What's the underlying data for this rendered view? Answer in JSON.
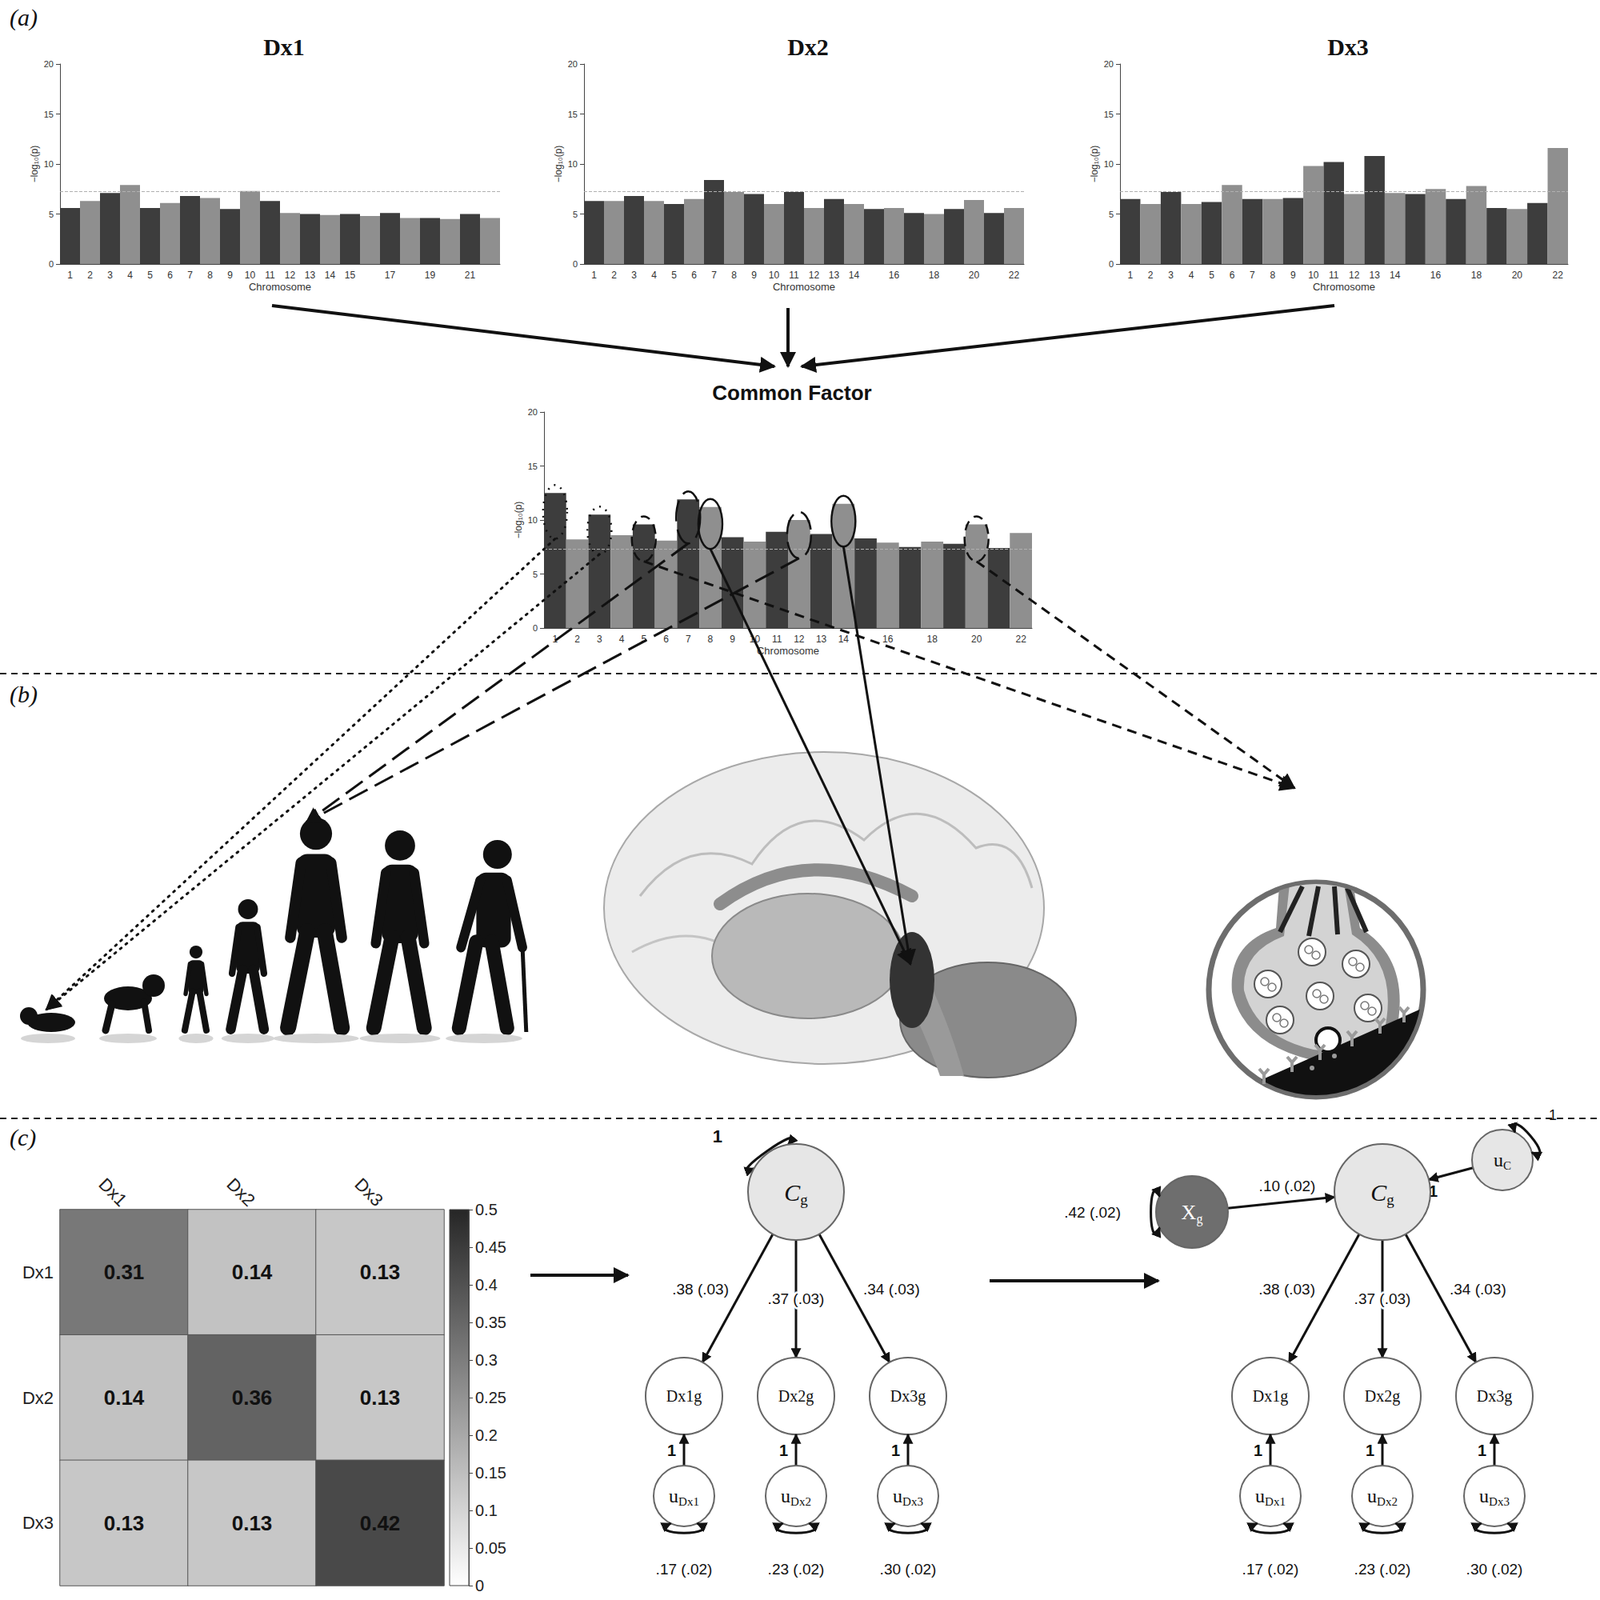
{
  "panel_labels": [
    "(a)",
    "(b)",
    "(c)"
  ],
  "chart_data": [
    {
      "type": "bar",
      "title": "Dx1",
      "x_label": "Chromosome",
      "y_label": "−log₁₀(p)",
      "categories": [
        "1",
        "2",
        "3",
        "4",
        "5",
        "6",
        "7",
        "8",
        "9",
        "10",
        "11",
        "12",
        "13",
        "14",
        "15",
        null,
        "17",
        null,
        "19",
        null,
        "21",
        null
      ],
      "values": [
        5.6,
        6.3,
        7.1,
        7.9,
        5.6,
        6.1,
        6.8,
        6.6,
        5.5,
        7.3,
        6.3,
        5.1,
        5.0,
        4.9,
        5.0,
        4.8,
        5.1,
        4.6,
        4.6,
        4.5,
        5.0,
        4.6
      ],
      "colors": [
        "#3d3d3d",
        "#8f8f8f",
        "#3d3d3d",
        "#8f8f8f",
        "#3d3d3d",
        "#8f8f8f",
        "#3d3d3d",
        "#8f8f8f",
        "#3d3d3d",
        "#8f8f8f",
        "#3d3d3d",
        "#8f8f8f",
        "#3d3d3d",
        "#8f8f8f",
        "#3d3d3d",
        "#8f8f8f",
        "#3d3d3d",
        "#8f8f8f",
        "#3d3d3d",
        "#8f8f8f",
        "#3d3d3d",
        "#8f8f8f"
      ],
      "ylim": [
        0,
        20
      ],
      "yticks": [
        0,
        5,
        10,
        15,
        20
      ],
      "significance_line": 7.3,
      "grid": false
    },
    {
      "type": "bar",
      "title": "Dx2",
      "x_label": "Chromosome",
      "y_label": "−log₁₀(p)",
      "categories": [
        "1",
        "2",
        "3",
        "4",
        "5",
        "6",
        "7",
        "8",
        "9",
        "10",
        "11",
        "12",
        "13",
        "14",
        null,
        "16",
        null,
        "18",
        null,
        "20",
        null,
        "22"
      ],
      "values": [
        6.3,
        6.3,
        6.8,
        6.3,
        6.0,
        6.5,
        8.4,
        7.2,
        7.0,
        6.0,
        7.2,
        5.6,
        6.5,
        6.0,
        5.5,
        5.6,
        5.1,
        5.0,
        5.5,
        6.4,
        5.1,
        5.6
      ],
      "colors": [
        "#3d3d3d",
        "#8f8f8f",
        "#3d3d3d",
        "#8f8f8f",
        "#3d3d3d",
        "#8f8f8f",
        "#3d3d3d",
        "#8f8f8f",
        "#3d3d3d",
        "#8f8f8f",
        "#3d3d3d",
        "#8f8f8f",
        "#3d3d3d",
        "#8f8f8f",
        "#3d3d3d",
        "#8f8f8f",
        "#3d3d3d",
        "#8f8f8f",
        "#3d3d3d",
        "#8f8f8f",
        "#3d3d3d",
        "#8f8f8f"
      ],
      "ylim": [
        0,
        20
      ],
      "yticks": [
        0,
        5,
        10,
        15,
        20
      ],
      "significance_line": 7.3,
      "grid": false
    },
    {
      "type": "bar",
      "title": "Dx3",
      "x_label": "Chromosome",
      "y_label": "−log₁₀(p)",
      "categories": [
        "1",
        "2",
        "3",
        "4",
        "5",
        "6",
        "7",
        "8",
        "9",
        "10",
        "11",
        "12",
        "13",
        "14",
        null,
        "16",
        null,
        "18",
        null,
        "20",
        null,
        "22"
      ],
      "values": [
        6.5,
        6.0,
        7.2,
        6.0,
        6.2,
        7.9,
        6.5,
        6.5,
        6.6,
        9.8,
        10.2,
        7.0,
        10.8,
        7.1,
        7.0,
        7.5,
        6.5,
        7.8,
        5.6,
        5.5,
        6.1,
        11.6
      ],
      "colors": [
        "#3d3d3d",
        "#8f8f8f",
        "#3d3d3d",
        "#8f8f8f",
        "#3d3d3d",
        "#8f8f8f",
        "#3d3d3d",
        "#8f8f8f",
        "#3d3d3d",
        "#8f8f8f",
        "#3d3d3d",
        "#8f8f8f",
        "#3d3d3d",
        "#8f8f8f",
        "#3d3d3d",
        "#8f8f8f",
        "#3d3d3d",
        "#8f8f8f",
        "#3d3d3d",
        "#8f8f8f",
        "#3d3d3d",
        "#8f8f8f"
      ],
      "ylim": [
        0,
        20
      ],
      "yticks": [
        0,
        5,
        10,
        15,
        20
      ],
      "significance_line": 7.3,
      "grid": false
    },
    {
      "type": "bar",
      "title": "Common Factor",
      "x_label": "Chromosome",
      "y_label": "−log₁₀(p)",
      "categories": [
        "1",
        "2",
        "3",
        "4",
        "5",
        "6",
        "7",
        "8",
        "9",
        "10",
        "11",
        "12",
        "13",
        "14",
        null,
        "16",
        null,
        "18",
        null,
        "20",
        null,
        "22"
      ],
      "values": [
        12.5,
        8.2,
        10.5,
        8.6,
        9.6,
        8.1,
        11.9,
        11.2,
        8.4,
        8.0,
        8.9,
        10.0,
        8.7,
        11.5,
        8.3,
        7.9,
        7.5,
        8.0,
        7.8,
        9.6,
        7.4,
        8.8
      ],
      "colors": [
        "#3d3d3d",
        "#8f8f8f",
        "#3d3d3d",
        "#8f8f8f",
        "#3d3d3d",
        "#8f8f8f",
        "#3d3d3d",
        "#8f8f8f",
        "#3d3d3d",
        "#8f8f8f",
        "#3d3d3d",
        "#8f8f8f",
        "#3d3d3d",
        "#8f8f8f",
        "#3d3d3d",
        "#8f8f8f",
        "#3d3d3d",
        "#8f8f8f",
        "#3d3d3d",
        "#8f8f8f",
        "#3d3d3d",
        "#8f8f8f"
      ],
      "ylim": [
        0,
        20
      ],
      "yticks": [
        0,
        5,
        10,
        15,
        20
      ],
      "significance_line": 7.3,
      "grid": false,
      "highlights": [
        {
          "chromosome": 1,
          "line_style": "dotted"
        },
        {
          "chromosome": 3,
          "line_style": "dotted"
        },
        {
          "chromosome": 5,
          "line_style": "dashed"
        },
        {
          "chromosome": 7,
          "line_style": "long-dash"
        },
        {
          "chromosome": 8,
          "line_style": "solid"
        },
        {
          "chromosome": 12,
          "line_style": "long-dash"
        },
        {
          "chromosome": 14,
          "line_style": "solid"
        },
        {
          "chromosome": 20,
          "line_style": "dashed"
        }
      ]
    },
    {
      "type": "heatmap",
      "x": [
        "Dx1",
        "Dx2",
        "Dx3"
      ],
      "y": [
        "Dx1",
        "Dx2",
        "Dx3"
      ],
      "cells": [
        [
          0.31,
          0.14,
          0.13
        ],
        [
          0.14,
          0.36,
          0.13
        ],
        [
          0.13,
          0.13,
          0.42
        ]
      ],
      "data_labels": true,
      "colorbar": {
        "range": [
          0,
          0.5
        ],
        "ticks": [
          0,
          0.05,
          0.1,
          0.15,
          0.2,
          0.25,
          0.3,
          0.35,
          0.4,
          0.45,
          0.5
        ]
      }
    }
  ],
  "diagram": {
    "models": [
      {
        "latent": {
          "base": "C",
          "sub": "g"
        },
        "latent_variance": "1",
        "indicators": [
          {
            "label": "Dx1g",
            "loading": ".38 (.03)",
            "residual": {
              "base": "u",
              "sub": "Dx1"
            },
            "residual_path": "1",
            "residual_variance": ".17 (.02)"
          },
          {
            "label": "Dx2g",
            "loading": ".37 (.03)",
            "residual": {
              "base": "u",
              "sub": "Dx2"
            },
            "residual_path": "1",
            "residual_variance": ".23 (.02)"
          },
          {
            "label": "Dx3g",
            "loading": ".34 (.03)",
            "residual": {
              "base": "u",
              "sub": "Dx3"
            },
            "residual_path": "1",
            "residual_variance": ".30 (.02)"
          }
        ]
      },
      {
        "latent": {
          "base": "C",
          "sub": "g"
        },
        "predictor": {
          "base": "X",
          "sub": "g"
        },
        "predictor_variance": ".42 (.02)",
        "predictor_path": ".10 (.02)",
        "latent_residual": {
          "base": "u",
          "sub": "C"
        },
        "latent_residual_path": "1",
        "latent_residual_variance": "1",
        "indicators": [
          {
            "label": "Dx1g",
            "loading": ".38 (.03)",
            "residual": {
              "base": "u",
              "sub": "Dx1"
            },
            "residual_path": "1",
            "residual_variance": ".17 (.02)"
          },
          {
            "label": "Dx2g",
            "loading": ".37 (.03)",
            "residual": {
              "base": "u",
              "sub": "Dx2"
            },
            "residual_path": "1",
            "residual_variance": ".23 (.02)"
          },
          {
            "label": "Dx3g",
            "loading": ".34 (.03)",
            "residual": {
              "base": "u",
              "sub": "Dx3"
            },
            "residual_path": "1",
            "residual_variance": ".30 (.02)"
          }
        ]
      }
    ]
  }
}
